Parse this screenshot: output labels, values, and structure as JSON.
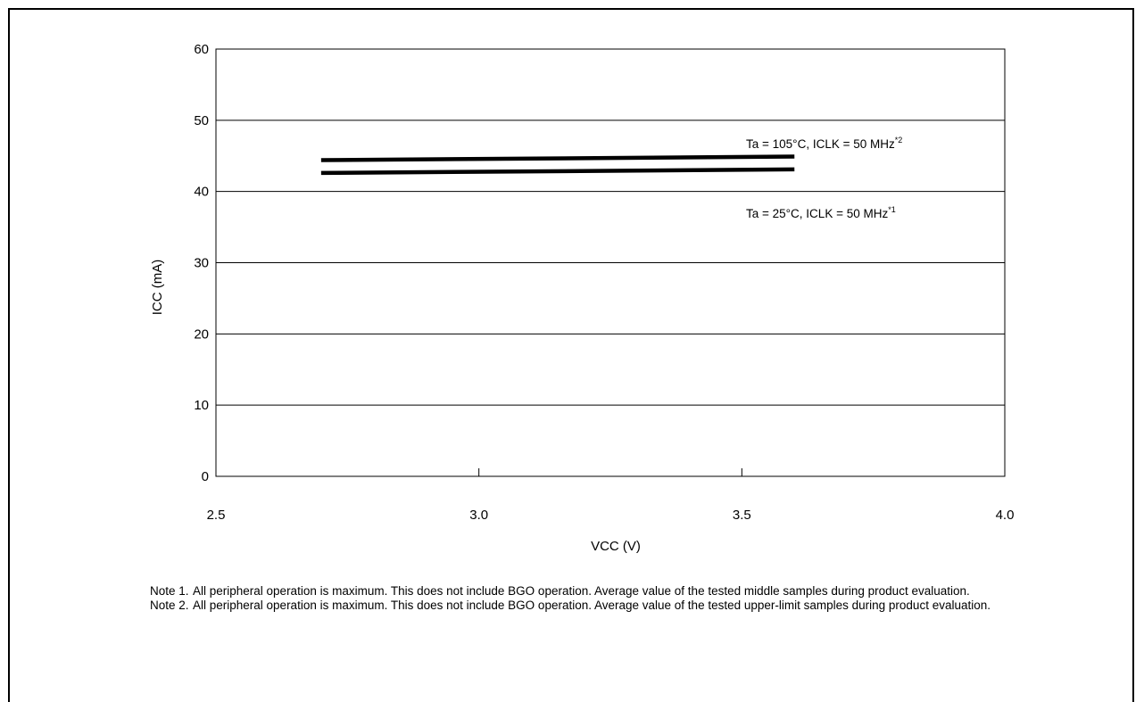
{
  "chart_data": {
    "type": "line",
    "xlabel": "VCC (V)",
    "ylabel": "ICC (mA)",
    "xlim": [
      2.5,
      4.0
    ],
    "ylim": [
      0,
      60
    ],
    "x_ticks": [
      "2.5",
      "3.0",
      "3.5",
      "4.0"
    ],
    "y_ticks": [
      "0",
      "10",
      "20",
      "30",
      "40",
      "50",
      "60"
    ],
    "grid": "horizontal",
    "series": [
      {
        "label_text": "Ta = 105°C, ICLK = 50 MHz",
        "label_sup": "*2",
        "x": [
          2.7,
          3.6
        ],
        "y": [
          44.4,
          44.9
        ]
      },
      {
        "label_text": "Ta = 25°C, ICLK = 50 MHz",
        "label_sup": "*1",
        "x": [
          2.7,
          3.6
        ],
        "y": [
          42.6,
          43.1
        ]
      }
    ]
  },
  "notes": [
    {
      "label": "Note 1.",
      "text": "All peripheral operation is maximum. This does not include BGO operation. Average value of the tested middle samples during product evaluation."
    },
    {
      "label": "Note 2.",
      "text": "All peripheral operation is maximum. This does not include BGO operation. Average value of the tested upper-limit samples during product evaluation."
    }
  ]
}
